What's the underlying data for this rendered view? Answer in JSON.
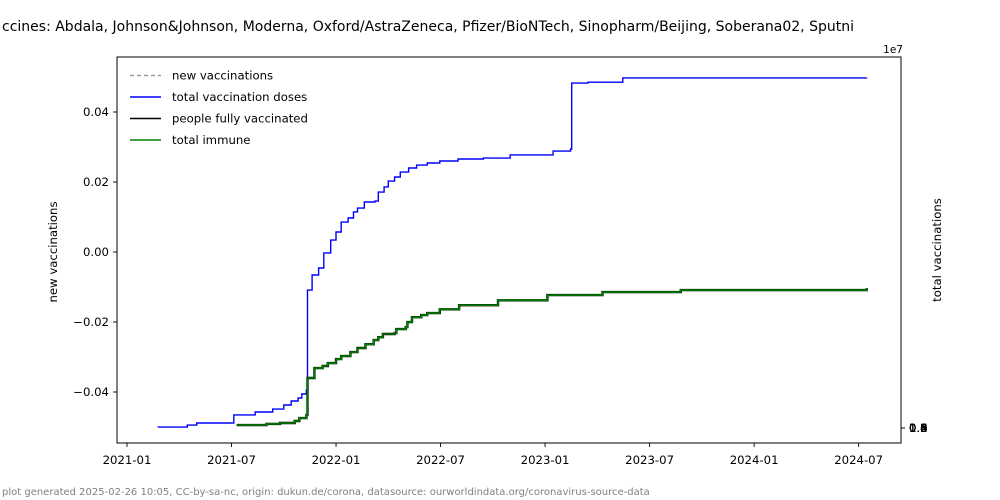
{
  "title": "ccines: Abdala, Johnson&Johnson, Moderna, Oxford/AstraZeneca, Pfizer/BioNTech, Sinopharm/Beijing, Soberana02, Sputni",
  "footer": "plot generated 2025-02-26 10:05, CC-by-sa-nc, origin: dukun.de/corona, datasource: ourworldindata.org/coronavirus-source-data",
  "chart_data": {
    "type": "line",
    "title": "ccines: Abdala, Johnson&Johnson, Moderna, Oxford/AstraZeneca, Pfizer/BioNTech, Sinopharm/Beijing, Soberana02, Sputni",
    "x_axis": {
      "tick_labels": [
        "2021-01",
        "2021-07",
        "2022-01",
        "2022-07",
        "2023-01",
        "2023-07",
        "2024-01",
        "2024-07"
      ],
      "grid": false
    },
    "y_left": {
      "label": "new vaccinations",
      "tick_labels": [
        "0.04",
        "0.02",
        "0.00",
        "−0.02",
        "−0.04"
      ],
      "tick_values": [
        0.04,
        0.02,
        0.0,
        -0.02,
        -0.04
      ],
      "range": [
        -0.055,
        0.055
      ]
    },
    "y_right": {
      "label": "total vaccinations",
      "offset_text": "1e7",
      "tick_labels": [
        "0.0",
        "0.2",
        "0.4",
        "0.6",
        "0.8",
        "1.0",
        "1.2",
        "1.4",
        "1.6"
      ],
      "tick_values": [
        0.0,
        0.2,
        0.4,
        0.6,
        0.8,
        1.0,
        1.2,
        1.4,
        1.6
      ],
      "range_1e7": [
        -0.07,
        1.65
      ]
    },
    "legend": [
      {
        "label": "new vaccinations",
        "color": "#999999",
        "dash": true
      },
      {
        "label": "total vaccination doses",
        "color": "#0000ff",
        "dash": false
      },
      {
        "label": "people fully vaccinated",
        "color": "#000000",
        "dash": false
      },
      {
        "label": "total immune",
        "color": "#008000",
        "dash": false
      }
    ],
    "legend_position": "upper left",
    "series": [
      {
        "name": "new vaccinations",
        "axis": "left",
        "color": "#999999",
        "dash": true,
        "points": []
      },
      {
        "name": "total vaccination doses",
        "axis": "right",
        "color": "#0000ff",
        "points": [
          [
            "2021-02-24",
            40000
          ],
          [
            "2021-04-15",
            130000
          ],
          [
            "2021-05-01",
            220000
          ],
          [
            "2021-07-05",
            580000
          ],
          [
            "2021-08-12",
            710000
          ],
          [
            "2021-09-12",
            840000
          ],
          [
            "2021-10-01",
            1020000
          ],
          [
            "2021-10-14",
            1200000
          ],
          [
            "2021-10-26",
            1330000
          ],
          [
            "2021-11-02",
            1510000
          ],
          [
            "2021-11-10",
            1690000
          ],
          [
            "2021-11-12",
            6120000
          ],
          [
            "2021-11-20",
            6790000
          ],
          [
            "2021-12-01",
            7100000
          ],
          [
            "2021-12-10",
            7770000
          ],
          [
            "2021-12-22",
            8340000
          ],
          [
            "2022-01-01",
            8700000
          ],
          [
            "2022-01-10",
            9140000
          ],
          [
            "2022-01-22",
            9320000
          ],
          [
            "2022-02-01",
            9590000
          ],
          [
            "2022-02-08",
            9760000
          ],
          [
            "2022-02-20",
            10030000
          ],
          [
            "2022-03-08",
            10070000
          ],
          [
            "2022-03-14",
            10470000
          ],
          [
            "2022-03-24",
            10700000
          ],
          [
            "2022-04-01",
            10960000
          ],
          [
            "2022-04-12",
            11140000
          ],
          [
            "2022-04-22",
            11360000
          ],
          [
            "2022-05-06",
            11540000
          ],
          [
            "2022-05-20",
            11670000
          ],
          [
            "2022-06-08",
            11760000
          ],
          [
            "2022-06-30",
            11850000
          ],
          [
            "2022-08-01",
            11940000
          ],
          [
            "2022-09-15",
            11980000
          ],
          [
            "2022-11-01",
            12120000
          ],
          [
            "2023-01-15",
            12290000
          ],
          [
            "2023-02-15",
            12380000
          ],
          [
            "2023-02-17",
            15310000
          ],
          [
            "2023-03-15",
            15350000
          ],
          [
            "2023-05-15",
            15540000
          ],
          [
            "2024-07-15",
            15550000
          ]
        ]
      },
      {
        "name": "people fully vaccinated",
        "axis": "right",
        "color": "#000000",
        "points": [
          [
            "2021-07-10",
            130000
          ],
          [
            "2021-09-01",
            180000
          ],
          [
            "2021-09-25",
            220000
          ],
          [
            "2021-10-20",
            310000
          ],
          [
            "2021-10-28",
            440000
          ],
          [
            "2021-11-10",
            580000
          ],
          [
            "2021-11-12",
            2220000
          ],
          [
            "2021-11-24",
            2660000
          ],
          [
            "2021-12-08",
            2750000
          ],
          [
            "2021-12-17",
            2880000
          ],
          [
            "2022-01-01",
            3060000
          ],
          [
            "2022-01-10",
            3190000
          ],
          [
            "2022-01-26",
            3370000
          ],
          [
            "2022-02-08",
            3550000
          ],
          [
            "2022-02-22",
            3720000
          ],
          [
            "2022-03-06",
            3900000
          ],
          [
            "2022-03-14",
            4030000
          ],
          [
            "2022-03-22",
            4170000
          ],
          [
            "2022-04-12",
            4210000
          ],
          [
            "2022-04-15",
            4390000
          ],
          [
            "2022-05-01",
            4480000
          ],
          [
            "2022-05-04",
            4700000
          ],
          [
            "2022-05-12",
            4920000
          ],
          [
            "2022-05-28",
            5010000
          ],
          [
            "2022-06-08",
            5100000
          ],
          [
            "2022-06-30",
            5270000
          ],
          [
            "2022-08-03",
            5450000
          ],
          [
            "2022-10-10",
            5670000
          ],
          [
            "2023-01-05",
            5900000
          ],
          [
            "2023-04-10",
            6030000
          ],
          [
            "2023-08-25",
            6120000
          ],
          [
            "2024-07-15",
            6210000
          ]
        ]
      },
      {
        "name": "total immune",
        "axis": "right",
        "color": "#008000",
        "points": [
          [
            "2021-07-10",
            130000
          ],
          [
            "2021-09-01",
            180000
          ],
          [
            "2021-09-25",
            220000
          ],
          [
            "2021-10-20",
            310000
          ],
          [
            "2021-10-28",
            440000
          ],
          [
            "2021-11-10",
            580000
          ],
          [
            "2021-11-12",
            2220000
          ],
          [
            "2021-11-24",
            2660000
          ],
          [
            "2021-12-08",
            2750000
          ],
          [
            "2021-12-17",
            2880000
          ],
          [
            "2022-01-01",
            3060000
          ],
          [
            "2022-01-10",
            3190000
          ],
          [
            "2022-01-26",
            3370000
          ],
          [
            "2022-02-08",
            3550000
          ],
          [
            "2022-02-22",
            3720000
          ],
          [
            "2022-03-06",
            3900000
          ],
          [
            "2022-03-14",
            4030000
          ],
          [
            "2022-03-22",
            4170000
          ],
          [
            "2022-04-12",
            4210000
          ],
          [
            "2022-04-15",
            4390000
          ],
          [
            "2022-05-01",
            4480000
          ],
          [
            "2022-05-04",
            4700000
          ],
          [
            "2022-05-12",
            4920000
          ],
          [
            "2022-05-28",
            5010000
          ],
          [
            "2022-06-08",
            5100000
          ],
          [
            "2022-06-30",
            5270000
          ],
          [
            "2022-08-03",
            5450000
          ],
          [
            "2022-10-10",
            5670000
          ],
          [
            "2023-01-05",
            5900000
          ],
          [
            "2023-04-10",
            6030000
          ],
          [
            "2023-08-25",
            6120000
          ],
          [
            "2024-07-15",
            6210000
          ]
        ]
      }
    ]
  }
}
